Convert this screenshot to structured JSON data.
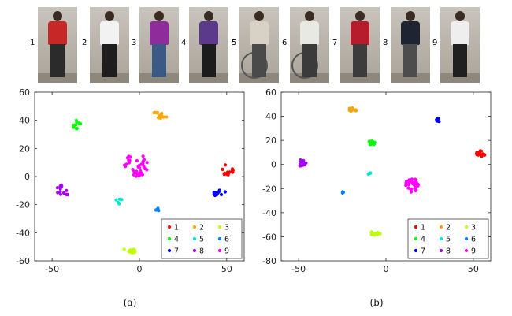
{
  "identities": [
    {
      "id": "1",
      "shirt": "#c62828",
      "pants": "#2b2b2b"
    },
    {
      "id": "2",
      "shirt": "#f2f2f2",
      "pants": "#1e1e1e"
    },
    {
      "id": "3",
      "shirt": "#8e2c9c",
      "pants": "#3a5a85"
    },
    {
      "id": "4",
      "shirt": "#5b3a8c",
      "pants": "#1c1c1c"
    },
    {
      "id": "5",
      "shirt": "#d8d2c6",
      "pants": "#4a4a4a",
      "bike": true
    },
    {
      "id": "6",
      "shirt": "#e9e9e4",
      "pants": "#3b3b3b",
      "bike": true
    },
    {
      "id": "7",
      "shirt": "#b71c2c",
      "pants": "#3c3c3c"
    },
    {
      "id": "8",
      "shirt": "#1f2433",
      "pants": "#4d4d4d"
    },
    {
      "id": "9",
      "shirt": "#eeeeee",
      "pants": "#202020"
    }
  ],
  "chart_data": [
    {
      "type": "scatter",
      "caption": "(a)",
      "xlim": [
        -60,
        60
      ],
      "ylim": [
        -60,
        60
      ],
      "xticks": [
        -50,
        0,
        50
      ],
      "yticks": [
        60,
        40,
        20,
        0,
        -20,
        -40,
        -60
      ],
      "grid": false,
      "legend_position": "bottom-right",
      "series": [
        {
          "name": "1",
          "color": "#ff0000",
          "center": [
            50,
            5
          ],
          "spread": [
            4,
            4
          ],
          "n": 16
        },
        {
          "name": "2",
          "color": "#ffa500",
          "center": [
            12,
            44
          ],
          "spread": [
            5,
            2.5
          ],
          "n": 14
        },
        {
          "name": "3",
          "color": "#bfff00",
          "center": [
            -5,
            -52
          ],
          "spread": [
            4,
            2.5
          ],
          "n": 14
        },
        {
          "name": "4",
          "color": "#00ff00",
          "center": [
            -36,
            37
          ],
          "spread": [
            2.5,
            3
          ],
          "n": 10
        },
        {
          "name": "5",
          "color": "#00e5cc",
          "center": [
            -12,
            -18
          ],
          "spread": [
            2.5,
            2.5
          ],
          "n": 5
        },
        {
          "name": "6",
          "color": "#0080ff",
          "center": [
            10,
            -23
          ],
          "spread": [
            2.5,
            1.5
          ],
          "n": 4
        },
        {
          "name": "7",
          "color": "#0000ff",
          "center": [
            46,
            -12
          ],
          "spread": [
            3.5,
            2.5
          ],
          "n": 10
        },
        {
          "name": "8",
          "color": "#a600ff",
          "center": [
            -44,
            -10
          ],
          "spread": [
            4,
            5
          ],
          "n": 14
        },
        {
          "name": "9",
          "color": "#ff00ff",
          "center": [
            -2,
            8
          ],
          "spread": [
            7,
            8
          ],
          "n": 38
        }
      ]
    },
    {
      "type": "scatter",
      "caption": "(b)",
      "xlim": [
        -60,
        60
      ],
      "ylim": [
        -80,
        60
      ],
      "xticks": [
        -50,
        0,
        50
      ],
      "yticks": [
        60,
        40,
        20,
        0,
        -20,
        -40,
        -60,
        -80
      ],
      "grid": false,
      "legend_position": "bottom-right",
      "series": [
        {
          "name": "1",
          "color": "#ff0000",
          "center": [
            54,
            9
          ],
          "spread": [
            3,
            2.5
          ],
          "n": 14
        },
        {
          "name": "2",
          "color": "#ffa500",
          "center": [
            -19,
            46
          ],
          "spread": [
            2.5,
            2.5
          ],
          "n": 12
        },
        {
          "name": "3",
          "color": "#bfff00",
          "center": [
            -6,
            -57
          ],
          "spread": [
            3,
            2
          ],
          "n": 12
        },
        {
          "name": "4",
          "color": "#00ff00",
          "center": [
            -8,
            18
          ],
          "spread": [
            2.5,
            1.5
          ],
          "n": 10
        },
        {
          "name": "5",
          "color": "#00e5cc",
          "center": [
            -9,
            -7
          ],
          "spread": [
            1.5,
            2
          ],
          "n": 5
        },
        {
          "name": "6",
          "color": "#0080ff",
          "center": [
            -25,
            -23
          ],
          "spread": [
            1,
            1
          ],
          "n": 3
        },
        {
          "name": "7",
          "color": "#0000ff",
          "center": [
            30,
            37
          ],
          "spread": [
            1.5,
            1.5
          ],
          "n": 8
        },
        {
          "name": "8",
          "color": "#a600ff",
          "center": [
            -48,
            1
          ],
          "spread": [
            2.5,
            3
          ],
          "n": 16
        },
        {
          "name": "9",
          "color": "#ff00ff",
          "center": [
            15,
            -17
          ],
          "spread": [
            4,
            6
          ],
          "n": 34
        }
      ]
    }
  ]
}
